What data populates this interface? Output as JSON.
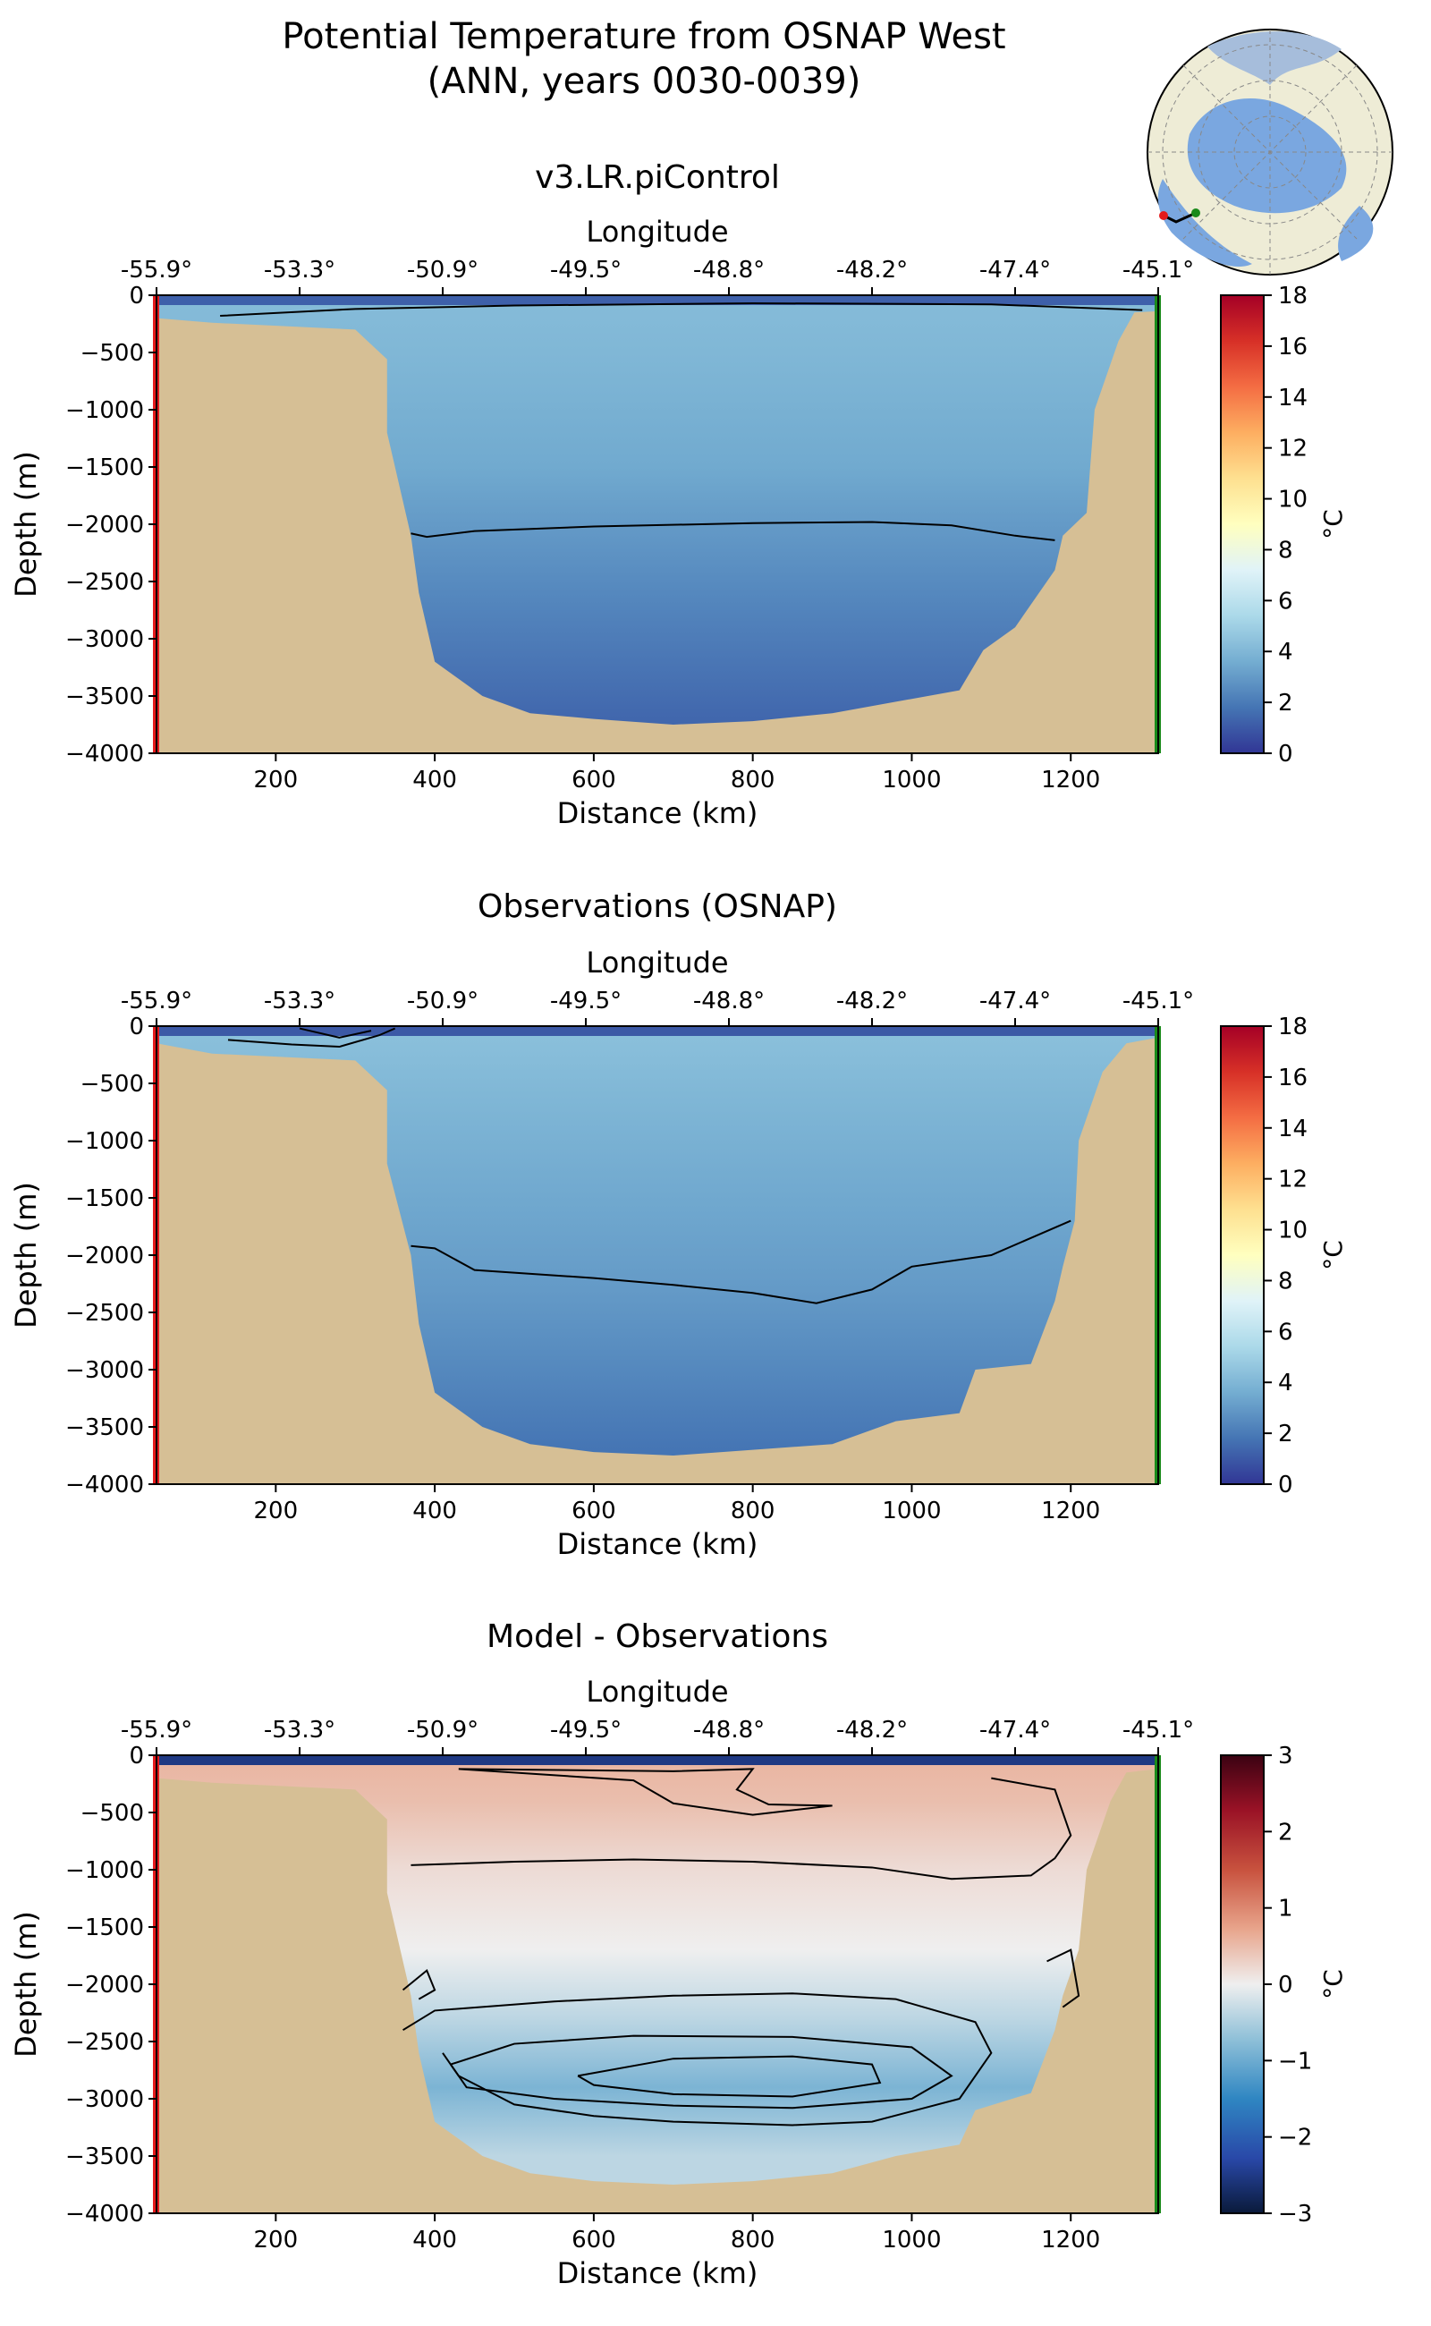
{
  "figure": {
    "title_line1": "Potential Temperature from OSNAP West",
    "title_line2": "(ANN, years 0030-0039)"
  },
  "inset_map": {
    "label": "Arctic polar map with OSNAP West section"
  },
  "chart_data": [
    {
      "type": "heatmap",
      "title": "v3.LR.piControl",
      "xlabel": "Distance (km)",
      "ylabel": "Depth (m)",
      "top_xlabel": "Longitude",
      "xlim": [
        50,
        1310
      ],
      "ylim": [
        -4000,
        0
      ],
      "xticks": [
        200,
        400,
        600,
        800,
        1000,
        1200
      ],
      "yticks": [
        0,
        -500,
        -1000,
        -1500,
        -2000,
        -2500,
        -3000,
        -3500,
        -4000
      ],
      "yticklabels": [
        "0",
        "−500",
        "−1000",
        "−1500",
        "−2000",
        "−2500",
        "−3000",
        "−3500",
        "−4000"
      ],
      "top_ticks": [
        {
          "km": 50,
          "label": "-55.9°"
        },
        {
          "km": 230,
          "label": "-53.3°"
        },
        {
          "km": 410,
          "label": "-50.9°"
        },
        {
          "km": 590,
          "label": "-49.5°"
        },
        {
          "km": 770,
          "label": "-48.8°"
        },
        {
          "km": 950,
          "label": "-48.2°"
        },
        {
          "km": 1130,
          "label": "-47.4°"
        },
        {
          "km": 1310,
          "label": "-45.1°"
        }
      ],
      "colorbar": {
        "label": "°C",
        "min": 0,
        "max": 18,
        "ticks": [
          0,
          2,
          4,
          6,
          8,
          10,
          12,
          14,
          16,
          18
        ],
        "colormap": "RdYlBu_r"
      },
      "fields": [
        {
          "depth": 0,
          "value": 4.2
        },
        {
          "depth": -500,
          "value": 4.0
        },
        {
          "depth": -1500,
          "value": 3.5
        },
        {
          "depth": -2000,
          "value": 3.0
        },
        {
          "depth": -2600,
          "value": 2.4
        },
        {
          "depth": -3700,
          "value": 1.4
        }
      ],
      "surface_value": 1.2,
      "contours": [
        {
          "level": 3.0,
          "points": [
            [
              370,
              -2080
            ],
            [
              390,
              -2110
            ],
            [
              450,
              -2060
            ],
            [
              600,
              -2020
            ],
            [
              800,
              -1990
            ],
            [
              950,
              -1980
            ],
            [
              1050,
              -2010
            ],
            [
              1130,
              -2100
            ],
            [
              1180,
              -2140
            ]
          ]
        },
        {
          "level": 2.5,
          "points": [
            [
              130,
              -180
            ],
            [
              300,
              -120
            ],
            [
              500,
              -90
            ],
            [
              800,
              -70
            ],
            [
              1100,
              -80
            ],
            [
              1290,
              -130
            ]
          ]
        }
      ],
      "topography": {
        "left": [
          [
            50,
            -200
          ],
          [
            120,
            -240
          ],
          [
            300,
            -300
          ],
          [
            340,
            -560
          ],
          [
            340,
            -1200
          ],
          [
            370,
            -2100
          ],
          [
            380,
            -2600
          ],
          [
            400,
            -3200
          ],
          [
            460,
            -3500
          ],
          [
            520,
            -3650
          ],
          [
            600,
            -3700
          ],
          [
            700,
            -3750
          ],
          [
            800,
            -3720
          ],
          [
            900,
            -3650
          ],
          [
            980,
            -3550
          ],
          [
            1060,
            -3450
          ],
          [
            1090,
            -3100
          ],
          [
            1130,
            -2900
          ],
          [
            1180,
            -2400
          ],
          [
            1190,
            -2100
          ],
          [
            1220,
            -1900
          ],
          [
            1230,
            -1000
          ],
          [
            1260,
            -400
          ],
          [
            1280,
            -150
          ],
          [
            1310,
            -140
          ]
        ]
      }
    },
    {
      "type": "heatmap",
      "title": "Observations (OSNAP)",
      "xlabel": "Distance (km)",
      "ylabel": "Depth (m)",
      "top_xlabel": "Longitude",
      "xlim": [
        50,
        1310
      ],
      "ylim": [
        -4000,
        0
      ],
      "xticks": [
        200,
        400,
        600,
        800,
        1000,
        1200
      ],
      "yticks": [
        0,
        -500,
        -1000,
        -1500,
        -2000,
        -2500,
        -3000,
        -3500,
        -4000
      ],
      "yticklabels": [
        "0",
        "−500",
        "−1000",
        "−1500",
        "−2000",
        "−2500",
        "−3000",
        "−3500",
        "−4000"
      ],
      "top_ticks": [
        {
          "km": 50,
          "label": "-55.9°"
        },
        {
          "km": 230,
          "label": "-53.3°"
        },
        {
          "km": 410,
          "label": "-50.9°"
        },
        {
          "km": 590,
          "label": "-49.5°"
        },
        {
          "km": 770,
          "label": "-48.8°"
        },
        {
          "km": 950,
          "label": "-48.2°"
        },
        {
          "km": 1130,
          "label": "-47.4°"
        },
        {
          "km": 1310,
          "label": "-45.1°"
        }
      ],
      "colorbar": {
        "label": "°C",
        "min": 0,
        "max": 18,
        "ticks": [
          0,
          2,
          4,
          6,
          8,
          10,
          12,
          14,
          16,
          18
        ],
        "colormap": "RdYlBu_r"
      },
      "fields": [
        {
          "depth": 0,
          "value": 4.4
        },
        {
          "depth": -600,
          "value": 4.0
        },
        {
          "depth": -1600,
          "value": 3.4
        },
        {
          "depth": -2300,
          "value": 3.0
        },
        {
          "depth": -2900,
          "value": 2.5
        },
        {
          "depth": -3700,
          "value": 1.8
        }
      ],
      "surface_value": 1.0,
      "contours": [
        {
          "level": 3.0,
          "points": [
            [
              370,
              -1920
            ],
            [
              400,
              -1940
            ],
            [
              450,
              -2130
            ],
            [
              600,
              -2200
            ],
            [
              700,
              -2260
            ],
            [
              800,
              -2330
            ],
            [
              880,
              -2420
            ],
            [
              950,
              -2300
            ],
            [
              1000,
              -2100
            ],
            [
              1100,
              -2000
            ],
            [
              1200,
              -1700
            ]
          ]
        },
        {
          "level": 2.0,
          "points": [
            [
              140,
              -120
            ],
            [
              220,
              -160
            ],
            [
              280,
              -180
            ],
            [
              330,
              -80
            ],
            [
              350,
              -20
            ]
          ]
        },
        {
          "level": 2.5,
          "points": [
            [
              230,
              -20
            ],
            [
              280,
              -100
            ],
            [
              320,
              -40
            ]
          ]
        }
      ],
      "topography": {
        "left": [
          [
            50,
            -150
          ],
          [
            120,
            -240
          ],
          [
            300,
            -300
          ],
          [
            340,
            -560
          ],
          [
            340,
            -1200
          ],
          [
            370,
            -2000
          ],
          [
            380,
            -2600
          ],
          [
            400,
            -3200
          ],
          [
            460,
            -3500
          ],
          [
            520,
            -3650
          ],
          [
            600,
            -3720
          ],
          [
            700,
            -3750
          ],
          [
            800,
            -3700
          ],
          [
            900,
            -3650
          ],
          [
            980,
            -3450
          ],
          [
            1060,
            -3380
          ],
          [
            1080,
            -3000
          ],
          [
            1150,
            -2950
          ],
          [
            1180,
            -2400
          ],
          [
            1190,
            -2100
          ],
          [
            1205,
            -1700
          ],
          [
            1210,
            -1000
          ],
          [
            1240,
            -400
          ],
          [
            1270,
            -150
          ],
          [
            1310,
            -100
          ]
        ]
      }
    },
    {
      "type": "heatmap",
      "title": "Model - Observations",
      "xlabel": "Distance (km)",
      "ylabel": "Depth (m)",
      "top_xlabel": "Longitude",
      "xlim": [
        50,
        1310
      ],
      "ylim": [
        -4000,
        0
      ],
      "xticks": [
        200,
        400,
        600,
        800,
        1000,
        1200
      ],
      "yticks": [
        0,
        -500,
        -1000,
        -1500,
        -2000,
        -2500,
        -3000,
        -3500,
        -4000
      ],
      "yticklabels": [
        "0",
        "−500",
        "−1000",
        "−1500",
        "−2000",
        "−2500",
        "−3000",
        "−3500",
        "−4000"
      ],
      "top_ticks": [
        {
          "km": 50,
          "label": "-55.9°"
        },
        {
          "km": 230,
          "label": "-53.3°"
        },
        {
          "km": 410,
          "label": "-50.9°"
        },
        {
          "km": 590,
          "label": "-49.5°"
        },
        {
          "km": 770,
          "label": "-48.8°"
        },
        {
          "km": 950,
          "label": "-48.2°"
        },
        {
          "km": 1130,
          "label": "-47.4°"
        },
        {
          "km": 1310,
          "label": "-45.1°"
        }
      ],
      "colorbar": {
        "label": "°C",
        "min": -3,
        "max": 3,
        "ticks": [
          -3,
          -2,
          -1,
          0,
          1,
          2,
          3
        ],
        "ticklabels": [
          "−3",
          "−2",
          "−1",
          "0",
          "1",
          "2",
          "3"
        ],
        "colormap": "RdBu_r"
      },
      "fields": [
        {
          "depth": 0,
          "value": 0.6
        },
        {
          "depth": -400,
          "value": 0.5
        },
        {
          "depth": -1000,
          "value": 0.2
        },
        {
          "depth": -1700,
          "value": 0.0
        },
        {
          "depth": -2300,
          "value": -0.4
        },
        {
          "depth": -2900,
          "value": -0.9
        },
        {
          "depth": -3500,
          "value": -0.4
        }
      ],
      "surface_value": -2.5,
      "contours": [
        {
          "level": 0.5,
          "points": [
            [
              430,
              -120
            ],
            [
              700,
              -140
            ],
            [
              800,
              -120
            ],
            [
              780,
              -300
            ],
            [
              820,
              -430
            ],
            [
              900,
              -440
            ],
            [
              800,
              -520
            ],
            [
              700,
              -420
            ],
            [
              650,
              -220
            ],
            [
              430,
              -120
            ]
          ]
        },
        {
          "level": 0.25,
          "points": [
            [
              370,
              -960
            ],
            [
              500,
              -930
            ],
            [
              650,
              -910
            ],
            [
              800,
              -930
            ],
            [
              950,
              -980
            ],
            [
              1050,
              -1080
            ],
            [
              1150,
              -1050
            ],
            [
              1180,
              -900
            ],
            [
              1200,
              -700
            ],
            [
              1180,
              -300
            ],
            [
              1100,
              -200
            ]
          ]
        },
        {
          "level": -0.25,
          "points": [
            [
              360,
              -2400
            ],
            [
              400,
              -2230
            ],
            [
              550,
              -2150
            ],
            [
              700,
              -2100
            ],
            [
              850,
              -2080
            ],
            [
              980,
              -2130
            ],
            [
              1080,
              -2330
            ],
            [
              1100,
              -2600
            ],
            [
              1060,
              -3000
            ],
            [
              950,
              -3200
            ],
            [
              850,
              -3230
            ],
            [
              700,
              -3200
            ],
            [
              600,
              -3150
            ],
            [
              500,
              -3050
            ],
            [
              430,
              -2800
            ],
            [
              410,
              -2600
            ]
          ]
        },
        {
          "level": -0.5,
          "points": [
            [
              420,
              -2700
            ],
            [
              500,
              -2520
            ],
            [
              650,
              -2450
            ],
            [
              850,
              -2460
            ],
            [
              1000,
              -2550
            ],
            [
              1050,
              -2800
            ],
            [
              1000,
              -3000
            ],
            [
              850,
              -3080
            ],
            [
              700,
              -3060
            ],
            [
              550,
              -3000
            ],
            [
              440,
              -2900
            ],
            [
              420,
              -2700
            ]
          ]
        },
        {
          "level": -0.75,
          "points": [
            [
              580,
              -2800
            ],
            [
              700,
              -2650
            ],
            [
              850,
              -2630
            ],
            [
              950,
              -2700
            ],
            [
              960,
              -2860
            ],
            [
              850,
              -2980
            ],
            [
              700,
              -2960
            ],
            [
              600,
              -2880
            ],
            [
              580,
              -2800
            ]
          ]
        },
        {
          "level": -0.25,
          "points": [
            [
              360,
              -2050
            ],
            [
              390,
              -1880
            ],
            [
              400,
              -2050
            ],
            [
              380,
              -2130
            ]
          ]
        },
        {
          "level": 0.25,
          "points": [
            [
              1170,
              -1800
            ],
            [
              1200,
              -1700
            ],
            [
              1210,
              -2100
            ],
            [
              1190,
              -2200
            ]
          ]
        }
      ],
      "topography": {
        "left": [
          [
            50,
            -200
          ],
          [
            120,
            -240
          ],
          [
            300,
            -300
          ],
          [
            340,
            -560
          ],
          [
            340,
            -1200
          ],
          [
            370,
            -2100
          ],
          [
            380,
            -2600
          ],
          [
            400,
            -3200
          ],
          [
            460,
            -3500
          ],
          [
            520,
            -3650
          ],
          [
            600,
            -3720
          ],
          [
            700,
            -3750
          ],
          [
            800,
            -3720
          ],
          [
            900,
            -3650
          ],
          [
            980,
            -3500
          ],
          [
            1060,
            -3400
          ],
          [
            1080,
            -3100
          ],
          [
            1150,
            -2950
          ],
          [
            1180,
            -2400
          ],
          [
            1190,
            -2100
          ],
          [
            1210,
            -1700
          ],
          [
            1220,
            -1000
          ],
          [
            1250,
            -400
          ],
          [
            1270,
            -150
          ],
          [
            1310,
            -120
          ]
        ]
      }
    }
  ]
}
